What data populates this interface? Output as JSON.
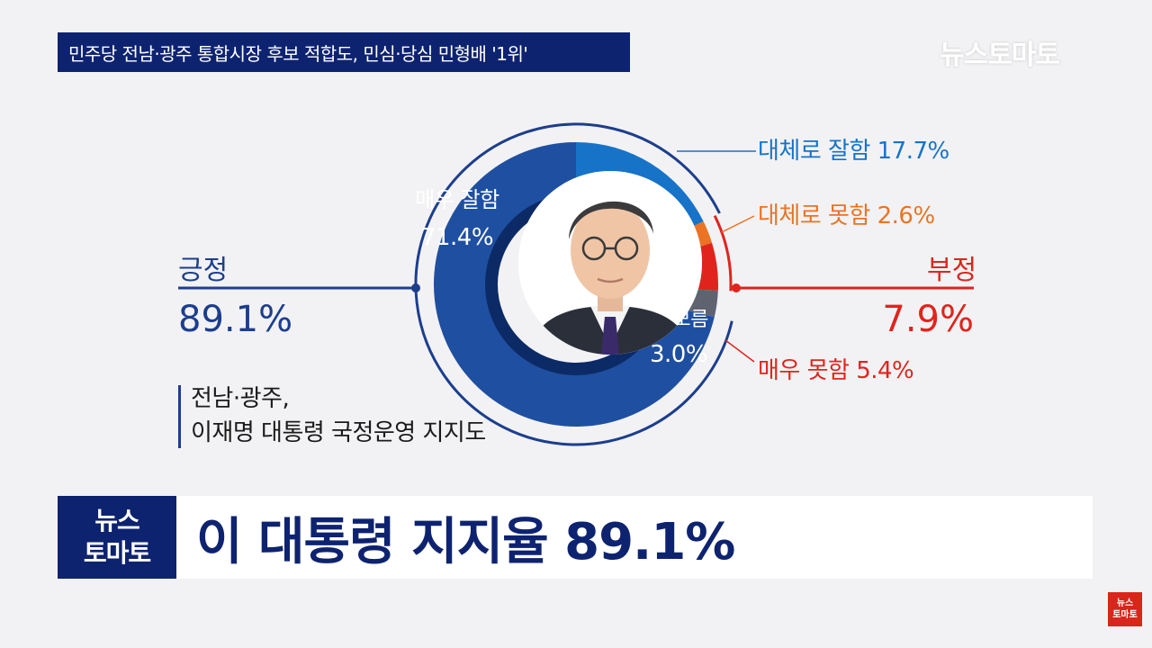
{
  "header": {
    "title": "민주당 전남·광주 통합시장 후보 적합도, 민심·당심 민형배 '1위'",
    "brand": "뉴스토마토"
  },
  "chart_data": {
    "type": "pie",
    "subtitle_lines": [
      "전남·광주,",
      "이재명 대통령 국정운영 지지도"
    ],
    "positive": {
      "label": "긍정",
      "value_text": "89.1%",
      "value": 89.1
    },
    "negative": {
      "label": "부정",
      "value_text": "7.9%",
      "value": 7.9
    },
    "slices": [
      {
        "name": "매우 잘함",
        "value": 71.4,
        "value_text": "71.4%",
        "color": "#1f4fa0"
      },
      {
        "name": "대체로 잘함",
        "value": 17.7,
        "value_text": "17.7%",
        "color": "#1673c8"
      },
      {
        "name": "대체로 못함",
        "value": 2.6,
        "value_text": "2.6%",
        "color": "#ea7324"
      },
      {
        "name": "매우 못함",
        "value": 5.4,
        "value_text": "5.4%",
        "color": "#e0241d"
      },
      {
        "name": "잘 모름",
        "value": 3.0,
        "value_text": "3.0%",
        "color": "#5f6370"
      }
    ]
  },
  "colors": {
    "positive": "#1c3e8d",
    "negative": "#e0241d",
    "navy": "#0e2370",
    "bg": "#f2f2f4"
  },
  "footer": {
    "logo_line1": "뉴스",
    "logo_line2": "토마토",
    "headline": "이 대통령 지지율 89.1%",
    "corner_line1": "뉴스",
    "corner_line2": "토마토"
  }
}
